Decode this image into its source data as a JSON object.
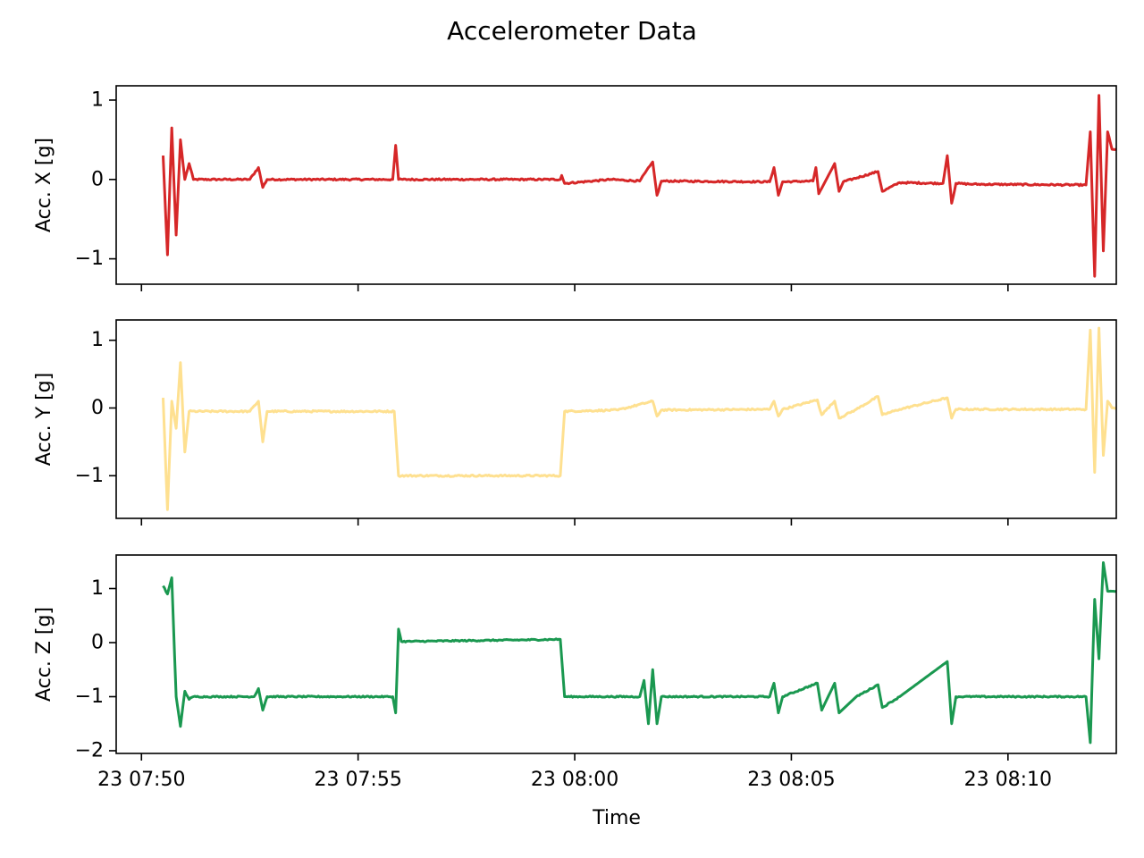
{
  "chart_data": {
    "type": "line",
    "title": "Accelerometer Data",
    "xlabel": "Time",
    "shared_x": true,
    "x_tick_labels": [
      "23 07:50",
      "23 07:55",
      "23 08:00",
      "23 08:05",
      "23 08:10"
    ],
    "x_tick_minutes": [
      0,
      5,
      10,
      15,
      20
    ],
    "x_start_time": "07:49:25",
    "x_end_time": "08:12:30",
    "subplots": [
      {
        "ylabel": "Acc. X [g]",
        "color": "#d62728",
        "y_ticks": [
          1,
          0,
          -1
        ],
        "y_tick_labels": [
          "1",
          "0",
          "−1"
        ],
        "ylim": [
          -1.32,
          1.18
        ],
        "noise": 0.01,
        "points": [
          {
            "t": "07:50:30",
            "v": 0.3
          },
          {
            "t": "07:50:36",
            "v": -0.95
          },
          {
            "t": "07:50:42",
            "v": 0.65
          },
          {
            "t": "07:50:48",
            "v": -0.7
          },
          {
            "t": "07:50:54",
            "v": 0.5
          },
          {
            "t": "07:51:00",
            "v": 0.0
          },
          {
            "t": "07:51:06",
            "v": 0.2
          },
          {
            "t": "07:51:12",
            "v": 0.0
          },
          {
            "t": "07:52:30",
            "v": 0.0
          },
          {
            "t": "07:52:42",
            "v": 0.15
          },
          {
            "t": "07:52:48",
            "v": -0.1
          },
          {
            "t": "07:52:54",
            "v": 0.0
          },
          {
            "t": "07:55:48",
            "v": 0.0
          },
          {
            "t": "07:55:52",
            "v": 0.43
          },
          {
            "t": "07:55:56",
            "v": 0.0
          },
          {
            "t": "07:59:40",
            "v": 0.0
          },
          {
            "t": "07:59:42",
            "v": 0.05
          },
          {
            "t": "07:59:46",
            "v": -0.05
          },
          {
            "t": "08:00:50",
            "v": 0.0
          },
          {
            "t": "08:01:30",
            "v": -0.02
          },
          {
            "t": "08:01:48",
            "v": 0.22
          },
          {
            "t": "08:01:54",
            "v": -0.2
          },
          {
            "t": "08:02:00",
            "v": -0.02
          },
          {
            "t": "08:04:30",
            "v": -0.03
          },
          {
            "t": "08:04:36",
            "v": 0.15
          },
          {
            "t": "08:04:42",
            "v": -0.2
          },
          {
            "t": "08:04:48",
            "v": -0.03
          },
          {
            "t": "08:05:30",
            "v": -0.02
          },
          {
            "t": "08:05:34",
            "v": 0.15
          },
          {
            "t": "08:05:38",
            "v": -0.18
          },
          {
            "t": "08:06:00",
            "v": 0.2
          },
          {
            "t": "08:06:06",
            "v": -0.15
          },
          {
            "t": "08:06:12",
            "v": -0.03
          },
          {
            "t": "08:07:00",
            "v": 0.1
          },
          {
            "t": "08:07:06",
            "v": -0.15
          },
          {
            "t": "08:07:30",
            "v": -0.04
          },
          {
            "t": "08:08:30",
            "v": -0.05
          },
          {
            "t": "08:08:36",
            "v": 0.3
          },
          {
            "t": "08:08:42",
            "v": -0.3
          },
          {
            "t": "08:08:48",
            "v": -0.05
          },
          {
            "t": "08:09:12",
            "v": -0.06
          },
          {
            "t": "08:11:48",
            "v": -0.07
          },
          {
            "t": "08:11:54",
            "v": 0.6
          },
          {
            "t": "08:12:00",
            "v": -1.22
          },
          {
            "t": "08:12:06",
            "v": 1.06
          },
          {
            "t": "08:12:12",
            "v": -0.9
          },
          {
            "t": "08:12:18",
            "v": 0.6
          },
          {
            "t": "08:12:24",
            "v": 0.38
          },
          {
            "t": "08:12:30",
            "v": 0.38
          }
        ]
      },
      {
        "ylabel": "Acc. Y [g]",
        "color": "#fee090",
        "y_ticks": [
          1,
          0,
          -1
        ],
        "y_tick_labels": [
          "1",
          "0",
          "−1"
        ],
        "ylim": [
          -1.63,
          1.3
        ],
        "noise": 0.012,
        "points": [
          {
            "t": "07:50:30",
            "v": 0.15
          },
          {
            "t": "07:50:36",
            "v": -1.5
          },
          {
            "t": "07:50:42",
            "v": 0.1
          },
          {
            "t": "07:50:48",
            "v": -0.3
          },
          {
            "t": "07:50:54",
            "v": 0.67
          },
          {
            "t": "07:51:00",
            "v": -0.65
          },
          {
            "t": "07:51:06",
            "v": -0.05
          },
          {
            "t": "07:52:30",
            "v": -0.05
          },
          {
            "t": "07:52:42",
            "v": 0.1
          },
          {
            "t": "07:52:48",
            "v": -0.5
          },
          {
            "t": "07:52:54",
            "v": -0.05
          },
          {
            "t": "07:55:50",
            "v": -0.05
          },
          {
            "t": "07:55:56",
            "v": -1.0
          },
          {
            "t": "07:59:40",
            "v": -1.0
          },
          {
            "t": "07:59:46",
            "v": -0.05
          },
          {
            "t": "08:01:00",
            "v": -0.03
          },
          {
            "t": "08:01:48",
            "v": 0.1
          },
          {
            "t": "08:01:54",
            "v": -0.12
          },
          {
            "t": "08:02:00",
            "v": -0.03
          },
          {
            "t": "08:04:30",
            "v": -0.02
          },
          {
            "t": "08:04:36",
            "v": 0.1
          },
          {
            "t": "08:04:42",
            "v": -0.12
          },
          {
            "t": "08:04:48",
            "v": -0.02
          },
          {
            "t": "08:05:36",
            "v": 0.12
          },
          {
            "t": "08:05:42",
            "v": -0.1
          },
          {
            "t": "08:06:00",
            "v": 0.1
          },
          {
            "t": "08:06:06",
            "v": -0.15
          },
          {
            "t": "08:06:30",
            "v": -0.02
          },
          {
            "t": "08:07:00",
            "v": 0.17
          },
          {
            "t": "08:07:06",
            "v": -0.1
          },
          {
            "t": "08:07:30",
            "v": -0.02
          },
          {
            "t": "08:08:36",
            "v": 0.15
          },
          {
            "t": "08:08:42",
            "v": -0.15
          },
          {
            "t": "08:08:48",
            "v": -0.02
          },
          {
            "t": "08:11:48",
            "v": -0.02
          },
          {
            "t": "08:11:54",
            "v": 1.15
          },
          {
            "t": "08:12:00",
            "v": -0.95
          },
          {
            "t": "08:12:06",
            "v": 1.18
          },
          {
            "t": "08:12:12",
            "v": -0.7
          },
          {
            "t": "08:12:18",
            "v": 0.1
          },
          {
            "t": "08:12:24",
            "v": 0.0
          },
          {
            "t": "08:12:30",
            "v": 0.0
          }
        ]
      },
      {
        "ylabel": "Acc. Z [g]",
        "color": "#1a9850",
        "y_ticks": [
          1,
          0,
          -1,
          -2
        ],
        "y_tick_labels": [
          "1",
          "0",
          "−1",
          "−2"
        ],
        "ylim": [
          -2.05,
          1.62
        ],
        "noise": 0.012,
        "points": [
          {
            "t": "07:50:30",
            "v": 1.05
          },
          {
            "t": "07:50:36",
            "v": 0.9
          },
          {
            "t": "07:50:42",
            "v": 1.2
          },
          {
            "t": "07:50:48",
            "v": -1.0
          },
          {
            "t": "07:50:54",
            "v": -1.55
          },
          {
            "t": "07:51:00",
            "v": -0.9
          },
          {
            "t": "07:51:06",
            "v": -1.05
          },
          {
            "t": "07:51:12",
            "v": -1.0
          },
          {
            "t": "07:52:36",
            "v": -1.0
          },
          {
            "t": "07:52:42",
            "v": -0.85
          },
          {
            "t": "07:52:48",
            "v": -1.25
          },
          {
            "t": "07:52:54",
            "v": -1.0
          },
          {
            "t": "07:55:48",
            "v": -1.0
          },
          {
            "t": "07:55:52",
            "v": -1.3
          },
          {
            "t": "07:55:56",
            "v": 0.25
          },
          {
            "t": "07:56:00",
            "v": 0.02
          },
          {
            "t": "07:58:50",
            "v": 0.05
          },
          {
            "t": "07:59:40",
            "v": 0.06
          },
          {
            "t": "07:59:46",
            "v": -1.0
          },
          {
            "t": "08:01:30",
            "v": -1.0
          },
          {
            "t": "08:01:36",
            "v": -0.7
          },
          {
            "t": "08:01:42",
            "v": -1.5
          },
          {
            "t": "08:01:48",
            "v": -0.5
          },
          {
            "t": "08:01:54",
            "v": -1.5
          },
          {
            "t": "08:02:00",
            "v": -1.0
          },
          {
            "t": "08:04:30",
            "v": -1.0
          },
          {
            "t": "08:04:36",
            "v": -0.75
          },
          {
            "t": "08:04:42",
            "v": -1.3
          },
          {
            "t": "08:04:48",
            "v": -1.0
          },
          {
            "t": "08:05:36",
            "v": -0.75
          },
          {
            "t": "08:05:42",
            "v": -1.25
          },
          {
            "t": "08:06:00",
            "v": -0.75
          },
          {
            "t": "08:06:06",
            "v": -1.3
          },
          {
            "t": "08:06:30",
            "v": -1.0
          },
          {
            "t": "08:07:00",
            "v": -0.78
          },
          {
            "t": "08:07:06",
            "v": -1.2
          },
          {
            "t": "08:07:30",
            "v": -1.0
          },
          {
            "t": "08:08:36",
            "v": -0.35
          },
          {
            "t": "08:08:42",
            "v": -1.5
          },
          {
            "t": "08:08:48",
            "v": -1.0
          },
          {
            "t": "08:11:48",
            "v": -1.0
          },
          {
            "t": "08:11:54",
            "v": -1.85
          },
          {
            "t": "08:12:00",
            "v": 0.8
          },
          {
            "t": "08:12:06",
            "v": -0.3
          },
          {
            "t": "08:12:12",
            "v": 1.48
          },
          {
            "t": "08:12:18",
            "v": 0.95
          },
          {
            "t": "08:12:24",
            "v": 0.95
          },
          {
            "t": "08:12:30",
            "v": 0.95
          }
        ]
      }
    ]
  }
}
